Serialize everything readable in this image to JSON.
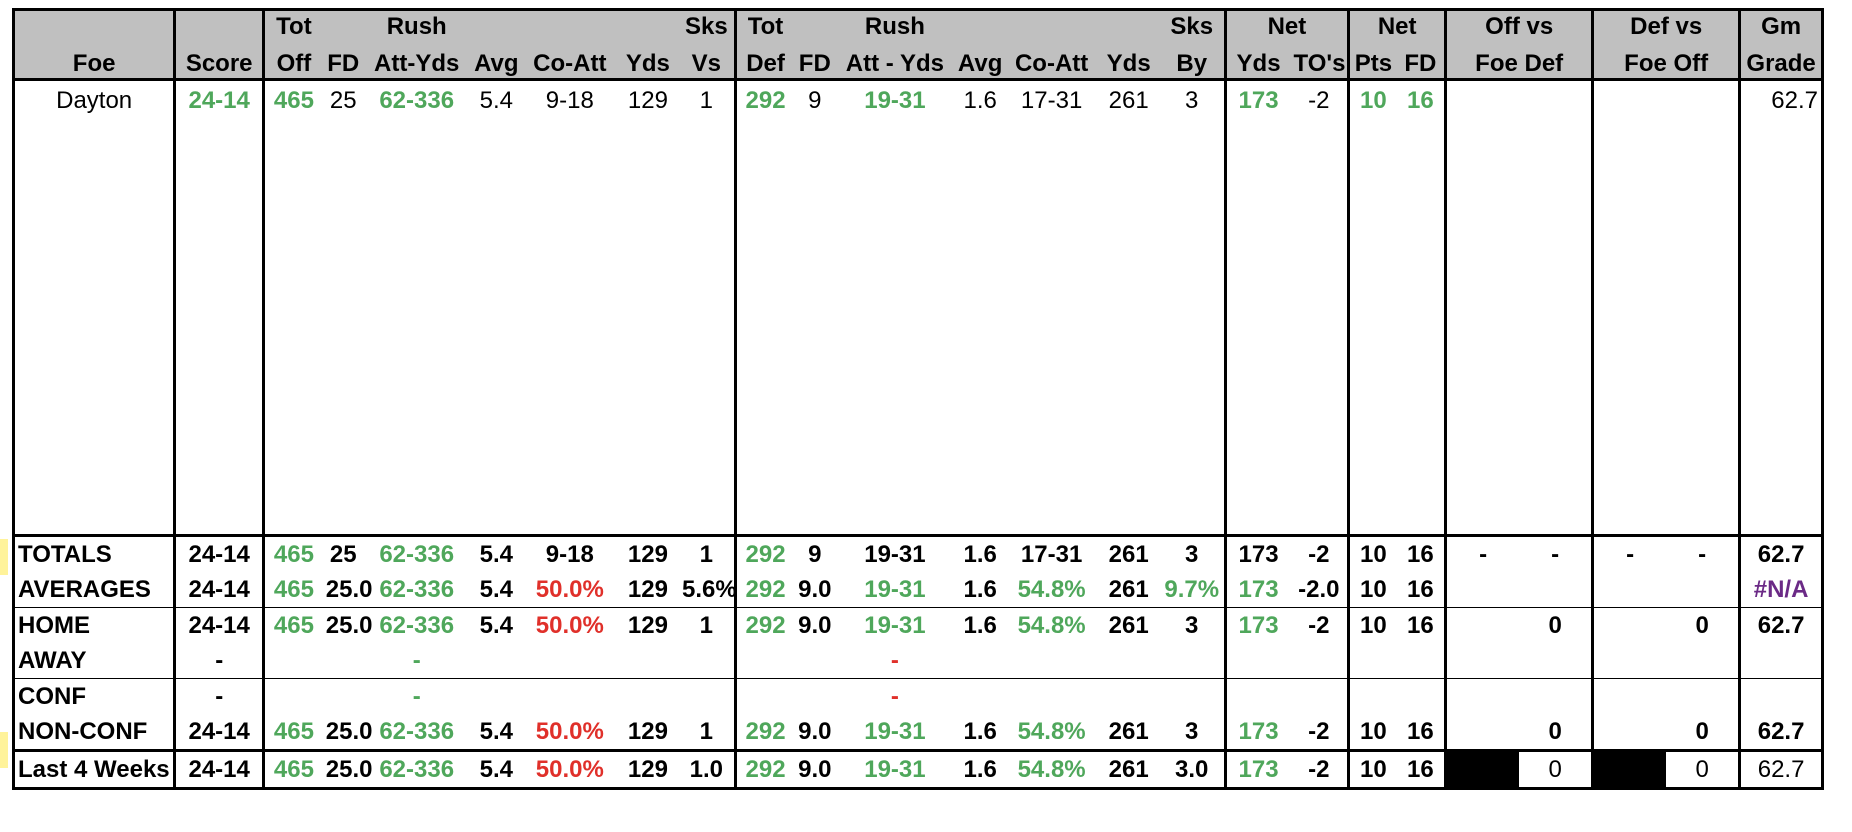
{
  "header": {
    "row1": {
      "tot_off": "Tot",
      "rush": "Rush",
      "sks_vs": "Sks",
      "tot_def": "Tot",
      "rush_def": "Rush",
      "sks_by": "Sks",
      "net": "Net",
      "net2": "Net",
      "off_vs": "Off vs",
      "def_vs": "Def vs",
      "gm": "Gm"
    },
    "row2": [
      "Foe",
      "Score",
      "Off",
      "FD",
      "Att-Yds",
      "Avg",
      "Co-Att",
      "Yds",
      "Vs",
      "Def",
      "FD",
      "Att - Yds",
      "Avg",
      "Co-Att",
      "Yds",
      "By",
      "Yds",
      "TO's",
      "Pts",
      "FD",
      "Foe Def",
      "Foe Off",
      "Grade"
    ]
  },
  "game": {
    "foe": "Dayton",
    "score": "24-14",
    "tot_off": "465",
    "fd": "25",
    "rush": "62-336",
    "avg": "5.4",
    "co_att": "9-18",
    "yds": "129",
    "sks_vs": "1",
    "tot_def": "292",
    "dfd": "9",
    "drush": "19-31",
    "davg": "1.6",
    "dco_att": "17-31",
    "dyds": "261",
    "sks_by": "3",
    "net_yds": "173",
    "to": "-2",
    "pts": "10",
    "nfd": "16",
    "grade": "62.7"
  },
  "totals": {
    "label": "TOTALS",
    "score": "24-14",
    "tot_off": "465",
    "fd": "25",
    "rush": "62-336",
    "avg": "5.4",
    "co_att": "9-18",
    "yds": "129",
    "sks_vs": "1",
    "tot_def": "292",
    "dfd": "9",
    "drush": "19-31",
    "davg": "1.6",
    "dco_att": "17-31",
    "dyds": "261",
    "sks_by": "3",
    "net_yds": "173",
    "to": "-2",
    "pts": "10",
    "nfd": "16",
    "off_a": "-",
    "off_b": "-",
    "def_a": "-",
    "def_b": "-",
    "grade": "62.7"
  },
  "averages": {
    "label": "AVERAGES",
    "score": "24-14",
    "tot_off": "465",
    "fd": "25.0",
    "rush": "62-336",
    "avg": "5.4",
    "co_att": "50.0%",
    "yds": "129",
    "sks_vs": "5.6%",
    "tot_def": "292",
    "dfd": "9.0",
    "drush": "19-31",
    "davg": "1.6",
    "dco_att": "54.8%",
    "dyds": "261",
    "sks_by": "9.7%",
    "net_yds": "173",
    "to": "-2.0",
    "pts": "10",
    "nfd": "16",
    "grade": "#N/A"
  },
  "home": {
    "label": "HOME",
    "score": "24-14",
    "tot_off": "465",
    "fd": "25.0",
    "rush": "62-336",
    "avg": "5.4",
    "co_att": "50.0%",
    "yds": "129",
    "sks_vs": "1",
    "tot_def": "292",
    "dfd": "9.0",
    "drush": "19-31",
    "davg": "1.6",
    "dco_att": "54.8%",
    "dyds": "261",
    "sks_by": "3",
    "net_yds": "173",
    "to": "-2",
    "pts": "10",
    "nfd": "16",
    "off": "0",
    "def": "0",
    "grade": "62.7"
  },
  "away": {
    "label": "AWAY",
    "score": "-",
    "rush": "-",
    "drush": "-"
  },
  "conf": {
    "label": "CONF",
    "score": "-",
    "rush": "-",
    "drush": "-"
  },
  "nonconf": {
    "label": "NON-CONF",
    "score": "24-14",
    "tot_off": "465",
    "fd": "25.0",
    "rush": "62-336",
    "avg": "5.4",
    "co_att": "50.0%",
    "yds": "129",
    "sks_vs": "1",
    "tot_def": "292",
    "dfd": "9.0",
    "drush": "19-31",
    "davg": "1.6",
    "dco_att": "54.8%",
    "dyds": "261",
    "sks_by": "3",
    "net_yds": "173",
    "to": "-2",
    "pts": "10",
    "nfd": "16",
    "off": "0",
    "def": "0",
    "grade": "62.7"
  },
  "last4": {
    "label": "Last 4 Weeks",
    "score": "24-14",
    "tot_off": "465",
    "fd": "25.0",
    "rush": "62-336",
    "avg": "5.4",
    "co_att": "50.0%",
    "yds": "129",
    "sks_vs": "1.0",
    "tot_def": "292",
    "dfd": "9.0",
    "drush": "19-31",
    "davg": "1.6",
    "dco_att": "54.8%",
    "dyds": "261",
    "sks_by": "3.0",
    "net_yds": "173",
    "to": "-2",
    "pts": "10",
    "nfd": "16",
    "off": "0",
    "def": "0",
    "grade": "62.7"
  },
  "colors": {
    "good": "#4fa75b",
    "bad": "#e0302a",
    "na": "#6b2a86",
    "header_bg": "#c0c0c0",
    "highlight": "#fff39a"
  }
}
